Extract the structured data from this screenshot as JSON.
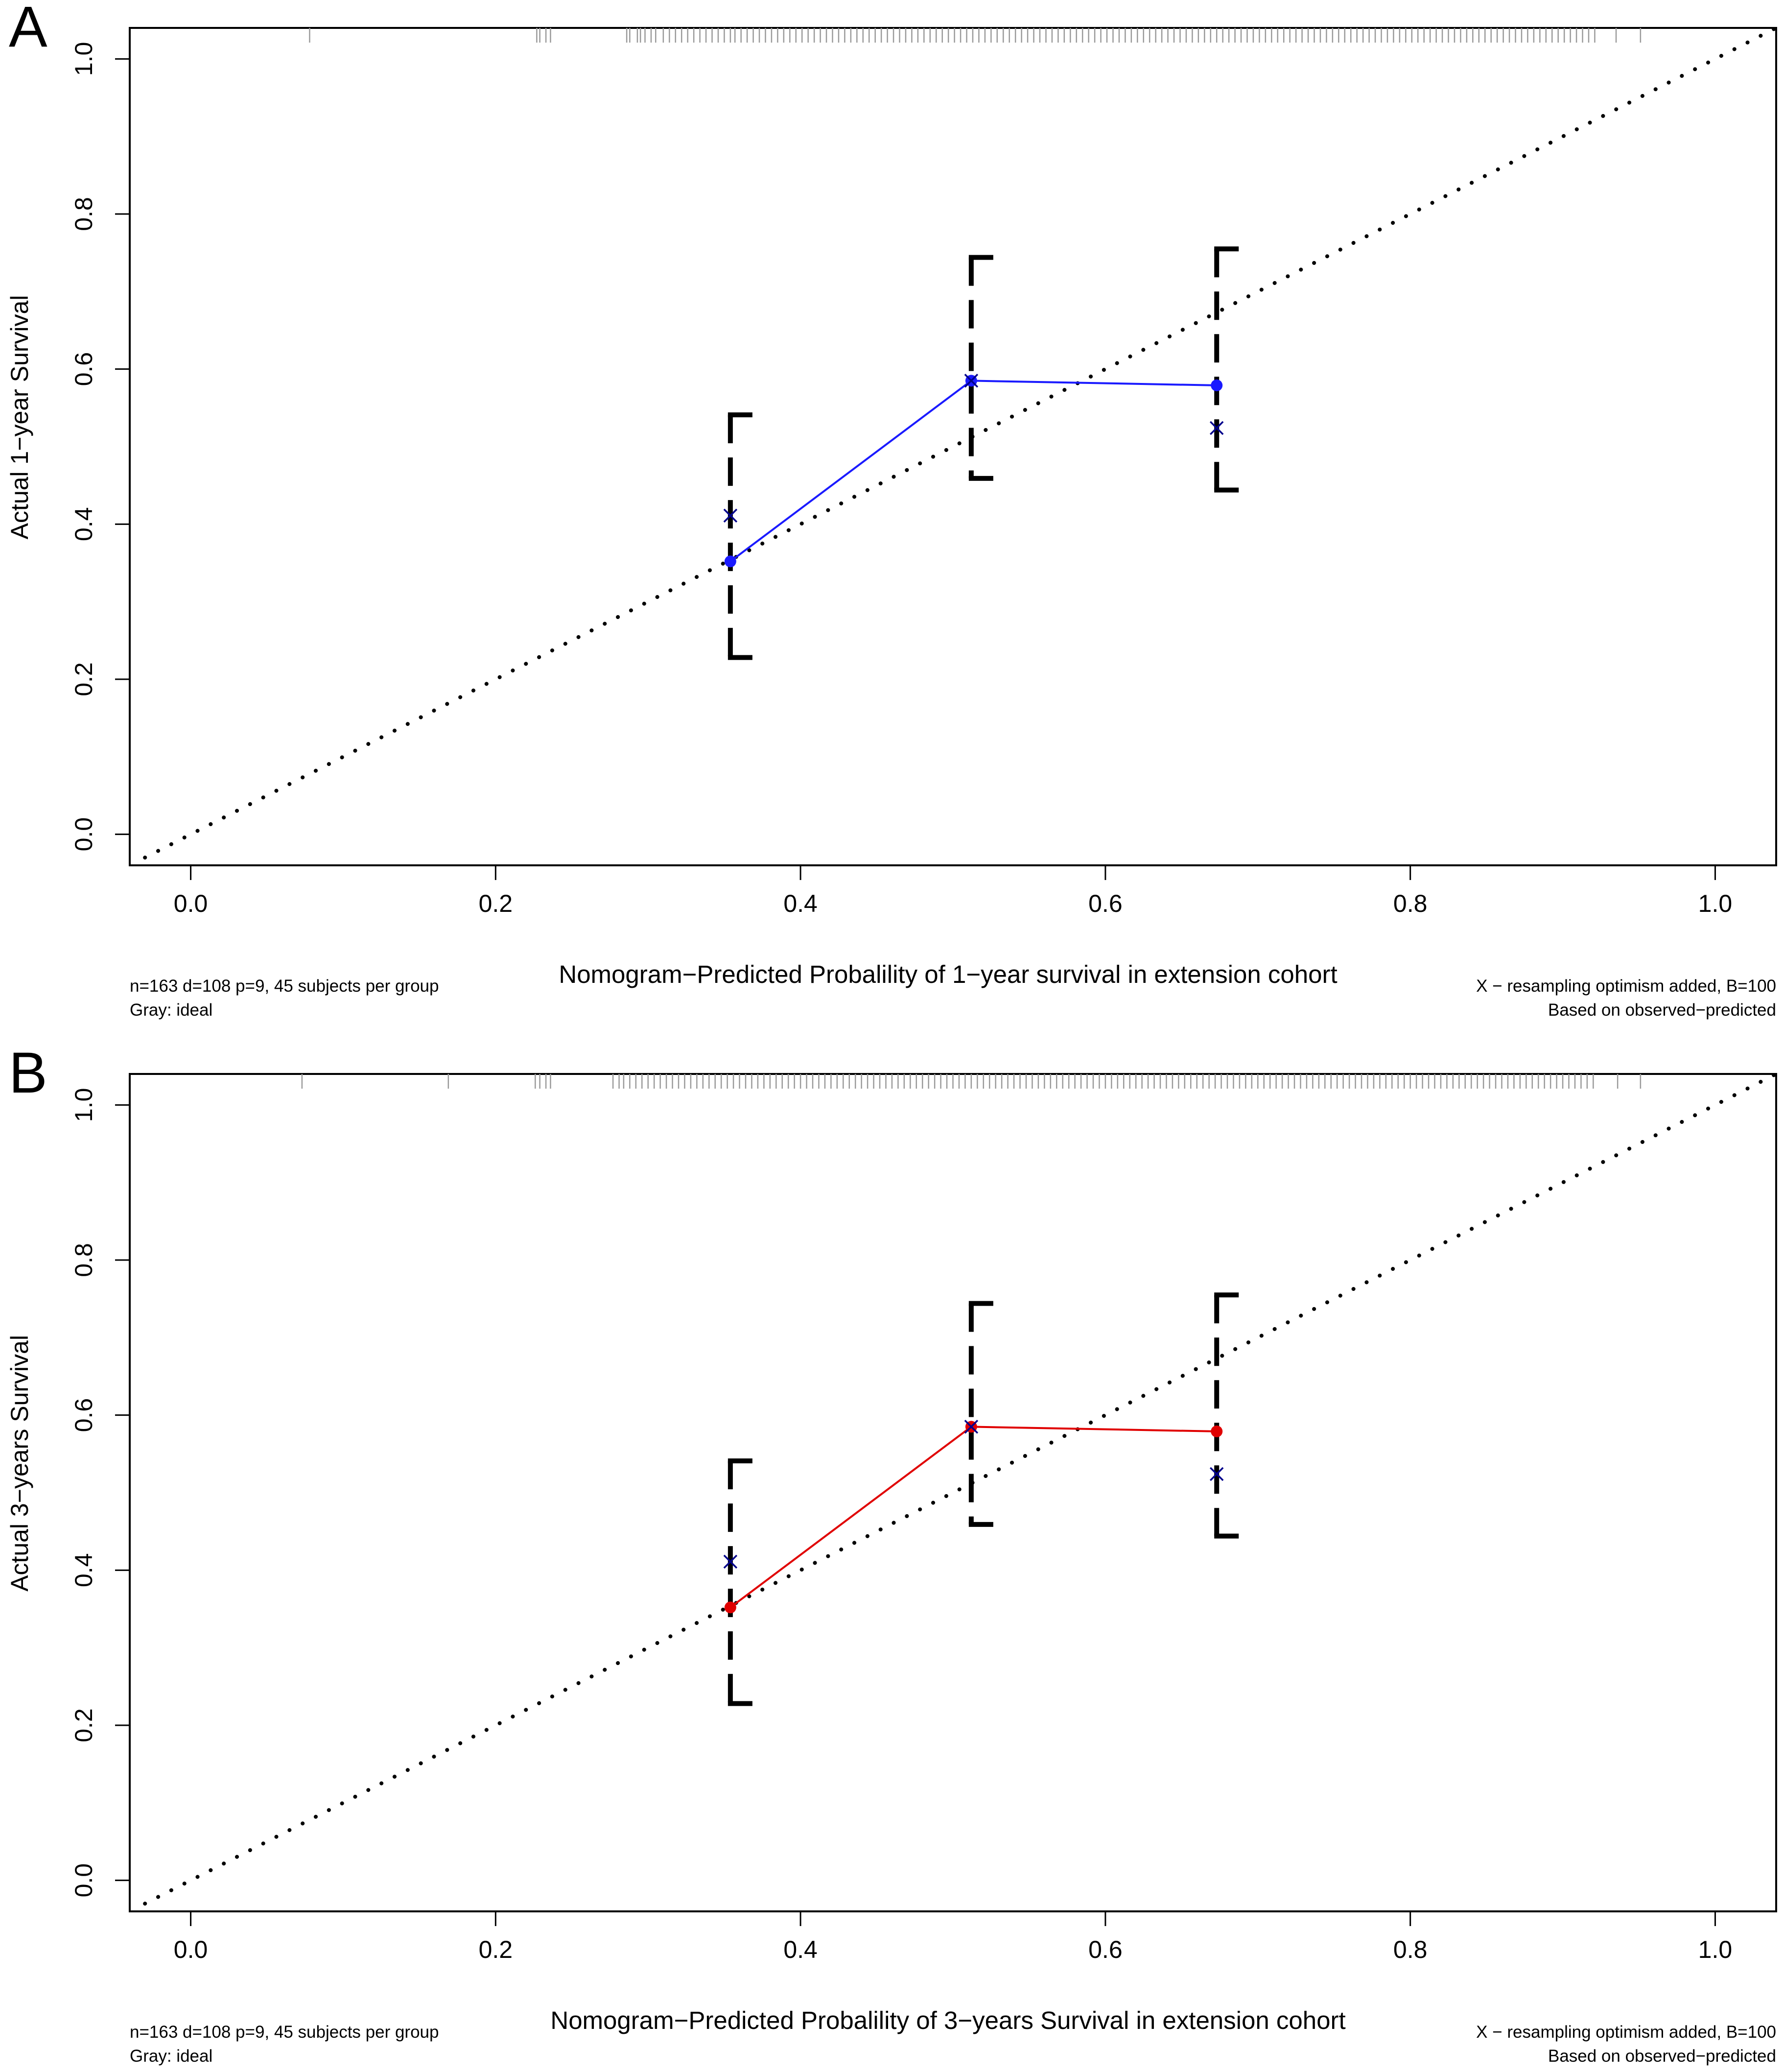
{
  "chart_data": [
    {
      "panel_label": "A",
      "type": "line",
      "xlabel": "Nomogram−Predicted Probalility of 1−year survival in extension cohort",
      "ylabel": "Actual 1−year Survival",
      "xlim": [
        -0.04,
        1.04
      ],
      "ylim": [
        -0.04,
        1.04
      ],
      "x_ticks": [
        "0.0",
        "0.2",
        "0.4",
        "0.6",
        "0.8",
        "1.0"
      ],
      "y_ticks": [
        "0.0",
        "0.2",
        "0.4",
        "0.6",
        "0.8",
        "1.0"
      ],
      "ideal_line": {
        "from": [
          -0.03,
          -0.03
        ],
        "to": [
          1.04,
          1.04
        ],
        "style": "dotted",
        "color": "#000000"
      },
      "observed_series": {
        "color": "#1a1aff",
        "points": [
          {
            "x": 0.354,
            "y": 0.352,
            "lower": 0.228,
            "upper": 0.541
          },
          {
            "x": 0.512,
            "y": 0.585,
            "lower": 0.459,
            "upper": 0.744
          },
          {
            "x": 0.673,
            "y": 0.579,
            "lower": 0.444,
            "upper": 0.755
          }
        ]
      },
      "corrected_series": {
        "color": "#00008b",
        "marker": "x",
        "points": [
          {
            "x": 0.354,
            "y": 0.411
          },
          {
            "x": 0.512,
            "y": 0.585
          },
          {
            "x": 0.673,
            "y": 0.524
          }
        ]
      },
      "rug_ticks": [
        0.078,
        0.227,
        0.229,
        0.233,
        0.236,
        0.286,
        0.288,
        0.293,
        0.295,
        0.298,
        0.302,
        0.305,
        0.31,
        0.314,
        0.318,
        0.322,
        0.326,
        0.33,
        0.334,
        0.338,
        0.342,
        0.346,
        0.35,
        0.354,
        0.357,
        0.361,
        0.365,
        0.369,
        0.373,
        0.377,
        0.381,
        0.385,
        0.389,
        0.393,
        0.397,
        0.401,
        0.405,
        0.409,
        0.413,
        0.417,
        0.421,
        0.425,
        0.429,
        0.433,
        0.437,
        0.441,
        0.445,
        0.449,
        0.453,
        0.457,
        0.461,
        0.465,
        0.469,
        0.473,
        0.477,
        0.481,
        0.485,
        0.489,
        0.493,
        0.497,
        0.501,
        0.505,
        0.509,
        0.513,
        0.517,
        0.521,
        0.525,
        0.529,
        0.533,
        0.537,
        0.541,
        0.545,
        0.549,
        0.553,
        0.557,
        0.561,
        0.565,
        0.569,
        0.573,
        0.577,
        0.581,
        0.585,
        0.589,
        0.593,
        0.597,
        0.601,
        0.605,
        0.609,
        0.613,
        0.617,
        0.621,
        0.625,
        0.629,
        0.633,
        0.637,
        0.641,
        0.645,
        0.649,
        0.653,
        0.657,
        0.661,
        0.665,
        0.669,
        0.673,
        0.677,
        0.681,
        0.685,
        0.689,
        0.693,
        0.697,
        0.701,
        0.705,
        0.709,
        0.713,
        0.717,
        0.721,
        0.725,
        0.729,
        0.733,
        0.737,
        0.741,
        0.745,
        0.749,
        0.753,
        0.757,
        0.761,
        0.765,
        0.769,
        0.773,
        0.777,
        0.781,
        0.785,
        0.789,
        0.793,
        0.797,
        0.801,
        0.805,
        0.809,
        0.813,
        0.817,
        0.821,
        0.825,
        0.829,
        0.833,
        0.837,
        0.841,
        0.845,
        0.849,
        0.853,
        0.857,
        0.861,
        0.865,
        0.869,
        0.873,
        0.877,
        0.881,
        0.885,
        0.889,
        0.893,
        0.897,
        0.901,
        0.905,
        0.909,
        0.913,
        0.917,
        0.921,
        0.935,
        0.951
      ],
      "note_left": [
        "n=163 d=108 p=9, 45 subjects per group",
        "Gray: ideal"
      ],
      "note_right": [
        "X − resampling optimism added, B=100",
        "Based on observed−predicted"
      ]
    },
    {
      "panel_label": "B",
      "type": "line",
      "xlabel": "Nomogram−Predicted Probalility of 3−years Survival in extension cohort",
      "ylabel": "Actual 3−years Survival",
      "xlim": [
        -0.04,
        1.04
      ],
      "ylim": [
        -0.04,
        1.04
      ],
      "x_ticks": [
        "0.0",
        "0.2",
        "0.4",
        "0.6",
        "0.8",
        "1.0"
      ],
      "y_ticks": [
        "0.0",
        "0.2",
        "0.4",
        "0.6",
        "0.8",
        "1.0"
      ],
      "ideal_line": {
        "from": [
          -0.03,
          -0.03
        ],
        "to": [
          1.04,
          1.04
        ],
        "style": "dotted",
        "color": "#000000"
      },
      "observed_series": {
        "color": "#e00000",
        "points": [
          {
            "x": 0.354,
            "y": 0.352,
            "lower": 0.228,
            "upper": 0.541
          },
          {
            "x": 0.512,
            "y": 0.585,
            "lower": 0.459,
            "upper": 0.744
          },
          {
            "x": 0.673,
            "y": 0.579,
            "lower": 0.444,
            "upper": 0.755
          }
        ]
      },
      "corrected_series": {
        "color": "#00008b",
        "marker": "x",
        "points": [
          {
            "x": 0.354,
            "y": 0.411
          },
          {
            "x": 0.512,
            "y": 0.585
          },
          {
            "x": 0.673,
            "y": 0.524
          }
        ]
      },
      "rug_ticks": [
        0.073,
        0.169,
        0.226,
        0.229,
        0.233,
        0.236,
        0.277,
        0.281,
        0.284,
        0.288,
        0.292,
        0.296,
        0.3,
        0.304,
        0.308,
        0.312,
        0.316,
        0.32,
        0.324,
        0.328,
        0.332,
        0.336,
        0.34,
        0.344,
        0.348,
        0.352,
        0.356,
        0.36,
        0.364,
        0.368,
        0.372,
        0.376,
        0.38,
        0.384,
        0.388,
        0.392,
        0.396,
        0.4,
        0.404,
        0.408,
        0.412,
        0.416,
        0.42,
        0.424,
        0.428,
        0.432,
        0.436,
        0.44,
        0.444,
        0.448,
        0.452,
        0.456,
        0.46,
        0.464,
        0.468,
        0.472,
        0.476,
        0.48,
        0.484,
        0.488,
        0.492,
        0.496,
        0.5,
        0.504,
        0.508,
        0.512,
        0.516,
        0.52,
        0.524,
        0.528,
        0.532,
        0.536,
        0.54,
        0.544,
        0.548,
        0.552,
        0.556,
        0.56,
        0.564,
        0.568,
        0.572,
        0.576,
        0.58,
        0.584,
        0.588,
        0.592,
        0.596,
        0.6,
        0.604,
        0.608,
        0.612,
        0.616,
        0.62,
        0.624,
        0.628,
        0.632,
        0.636,
        0.64,
        0.644,
        0.648,
        0.652,
        0.656,
        0.66,
        0.664,
        0.668,
        0.672,
        0.676,
        0.68,
        0.684,
        0.688,
        0.692,
        0.696,
        0.7,
        0.704,
        0.708,
        0.712,
        0.716,
        0.72,
        0.724,
        0.728,
        0.732,
        0.736,
        0.74,
        0.744,
        0.748,
        0.752,
        0.756,
        0.76,
        0.764,
        0.768,
        0.772,
        0.776,
        0.78,
        0.784,
        0.788,
        0.792,
        0.796,
        0.8,
        0.804,
        0.808,
        0.812,
        0.816,
        0.82,
        0.824,
        0.828,
        0.832,
        0.836,
        0.84,
        0.844,
        0.848,
        0.852,
        0.856,
        0.86,
        0.864,
        0.868,
        0.872,
        0.876,
        0.88,
        0.884,
        0.888,
        0.892,
        0.896,
        0.9,
        0.904,
        0.908,
        0.912,
        0.916,
        0.92,
        0.936,
        0.951
      ],
      "note_left": [
        "n=163 d=108 p=9, 45 subjects per group",
        "Gray: ideal"
      ],
      "note_right": [
        "X − resampling optimism added, B=100",
        "Based on observed−predicted"
      ]
    }
  ]
}
